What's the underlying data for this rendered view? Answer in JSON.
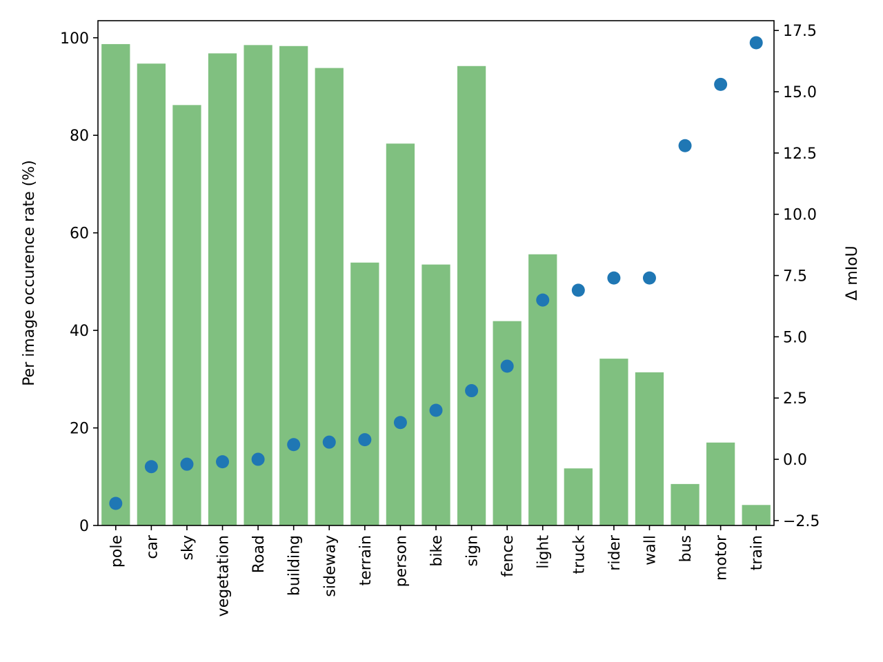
{
  "chart_data": {
    "type": "bar",
    "categories": [
      "pole",
      "car",
      "sky",
      "vegetation",
      "Road",
      "building",
      "sideway",
      "terrain",
      "person",
      "bike",
      "sign",
      "fence",
      "light",
      "truck",
      "rider",
      "wall",
      "bus",
      "motor",
      "train"
    ],
    "series": [
      {
        "type": "bar",
        "axis": "left",
        "color": "#80c080",
        "values": [
          98.7,
          94.7,
          86.2,
          96.8,
          98.5,
          98.3,
          93.8,
          53.9,
          78.3,
          53.5,
          94.2,
          41.9,
          55.6,
          11.7,
          34.2,
          31.4,
          8.5,
          17.0,
          4.2
        ]
      },
      {
        "type": "scatter",
        "axis": "right",
        "color": "#1f77b4",
        "values": [
          -1.8,
          -0.3,
          -0.2,
          -0.1,
          0.0,
          0.6,
          0.7,
          0.8,
          1.5,
          2.0,
          2.8,
          3.8,
          6.5,
          6.9,
          7.4,
          7.4,
          12.8,
          15.3,
          17.0
        ]
      }
    ],
    "ylabel": "Per image occurence rate (%)",
    "y2label": "Δ mIoU",
    "ylim": [
      0,
      103.5
    ],
    "y2lim": [
      -2.7,
      17.9
    ],
    "yticks": [
      "0",
      "20",
      "40",
      "60",
      "80",
      "100"
    ],
    "y2ticks": [
      "−2.5",
      "0.0",
      "2.5",
      "5.0",
      "7.5",
      "10.0",
      "12.5",
      "15.0",
      "17.5"
    ],
    "grid": false
  }
}
